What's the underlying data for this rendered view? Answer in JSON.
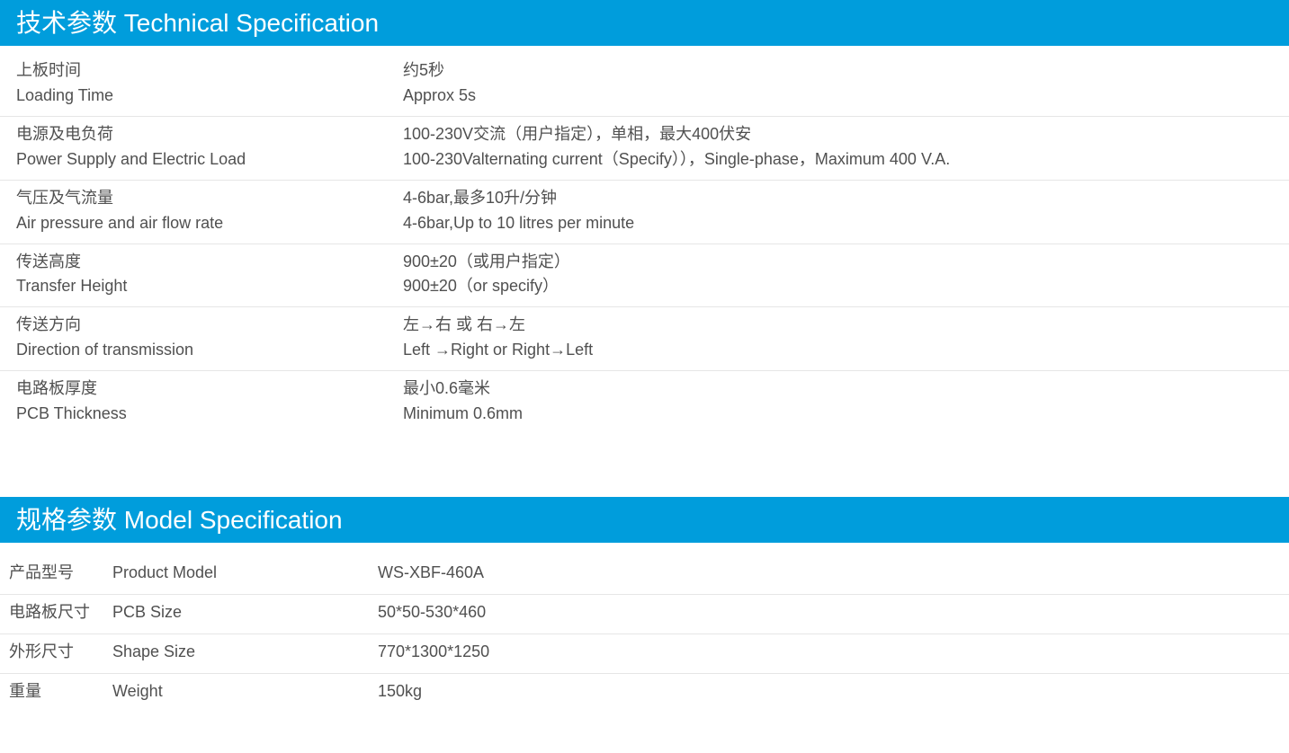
{
  "colors": {
    "header_bg": "#009ddc",
    "header_text": "#ffffff",
    "body_text": "#505050",
    "border": "#e6e6e6",
    "background": "#ffffff"
  },
  "typography": {
    "header_fontsize_pt": 21,
    "body_fontsize_pt": 14
  },
  "section1": {
    "title": "技术参数 Technical Specification",
    "rows": [
      {
        "label_cn": "上板时间",
        "label_en": "Loading Time",
        "value_cn": "约5秒",
        "value_en": " Approx 5s"
      },
      {
        "label_cn": "电源及电负荷",
        "label_en": "Power Supply and Electric Load",
        "value_cn": "100-230V交流（用户指定），单相，最大400伏安",
        "value_en": "100-230Valternating current（Specify）），Single-phase，Maximum 400 V.A."
      },
      {
        "label_cn": "气压及气流量",
        "label_en": "Air pressure and air flow rate",
        "value_cn": "4-6bar,最多10升/分钟",
        "value_en": "4-6bar,Up to 10 litres per minute"
      },
      {
        "label_cn": "传送高度",
        "label_en": "Transfer Height",
        "value_cn": "900±20（或用户指定）",
        "value_en": "900±20（or specify）"
      },
      {
        "label_cn": "传送方向",
        "label_en": "Direction of transmission",
        "value_cn": "左→右 或 右→左",
        "value_en": "Left →Right or Right→Left"
      },
      {
        "label_cn": "电路板厚度",
        "label_en": "PCB Thickness",
        "value_cn": "最小0.6毫米",
        "value_en": "Minimum 0.6mm"
      }
    ]
  },
  "section2": {
    "title": "规格参数 Model Specification",
    "rows": [
      {
        "label_cn": "产品型号",
        "label_en": "Product Model",
        "value": "WS-XBF-460A"
      },
      {
        "label_cn": "电路板尺寸",
        "label_en": "PCB Size",
        "value": "50*50-530*460"
      },
      {
        "label_cn": "外形尺寸",
        "label_en": "Shape Size",
        "value": "770*1300*1250"
      },
      {
        "label_cn": "重量",
        "label_en": "Weight",
        "value": "150kg"
      }
    ]
  }
}
